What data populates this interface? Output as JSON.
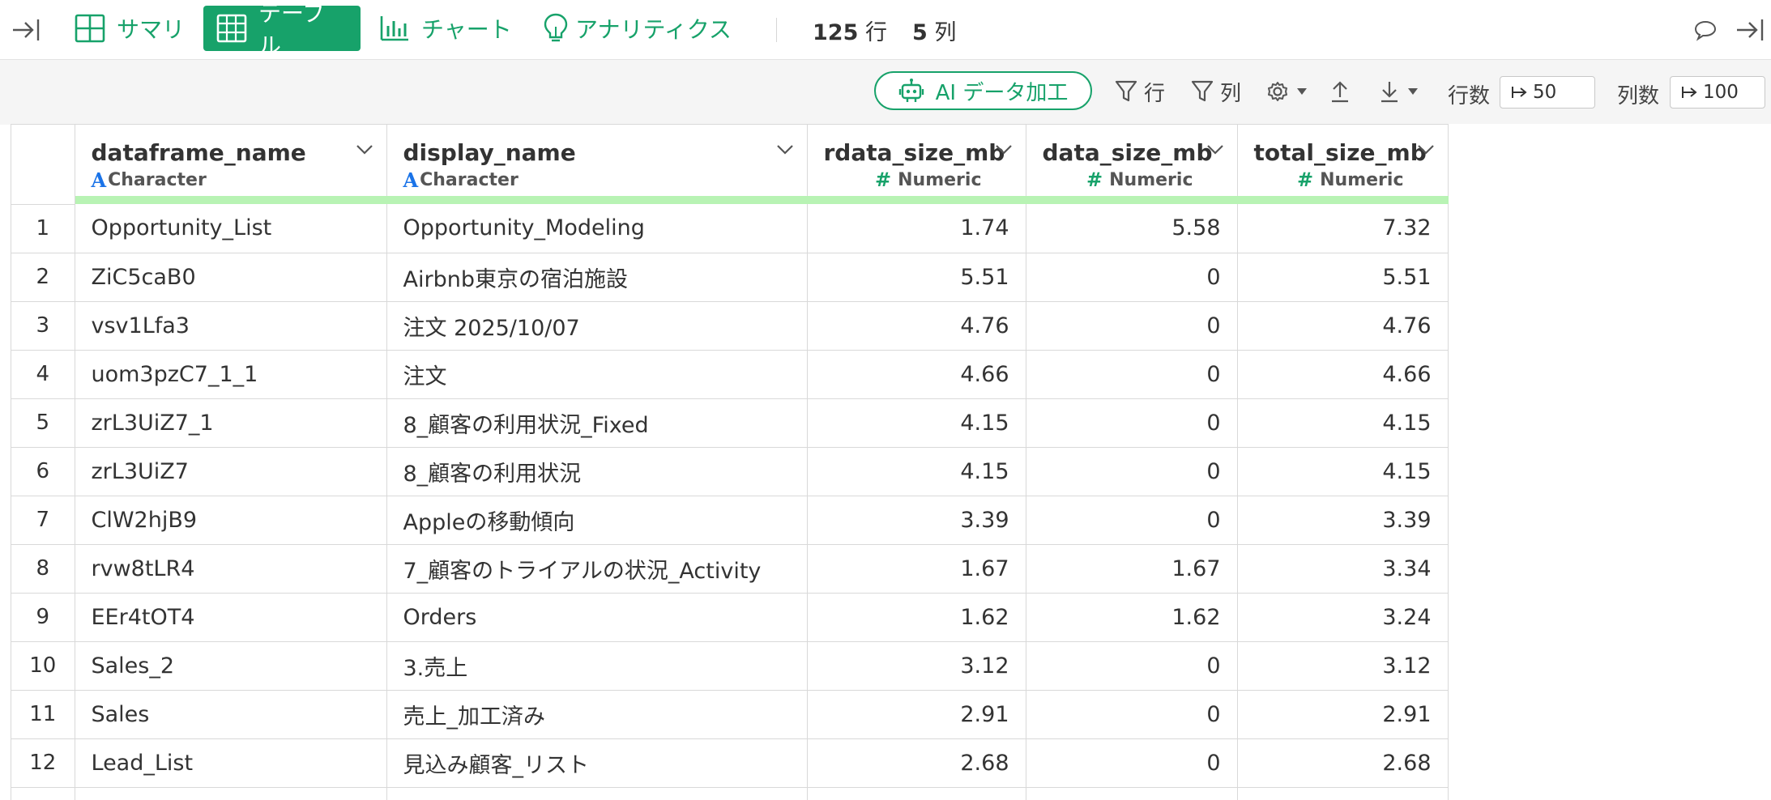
{
  "topbar": {
    "tabs": [
      {
        "label": "サマリ",
        "icon": "summary-grid-icon",
        "active": false
      },
      {
        "label": "テーブル",
        "icon": "table-icon",
        "active": true
      },
      {
        "label": "チャート",
        "icon": "bar-chart-icon",
        "active": false
      },
      {
        "label": "アナリティクス",
        "icon": "lightbulb-icon",
        "active": false
      }
    ],
    "row_count": "125",
    "row_unit": "行",
    "col_count": "5",
    "col_unit": "列"
  },
  "toolbar": {
    "ai_label": "AI データ加工",
    "filter_rows_label": "行",
    "filter_cols_label": "列",
    "rows_label": "行数",
    "rows_value": "50",
    "cols_label": "列数",
    "cols_value": "100"
  },
  "table": {
    "columns": [
      {
        "name": "dataframe_name",
        "type": "Character",
        "kind": "text"
      },
      {
        "name": "display_name",
        "type": "Character",
        "kind": "text"
      },
      {
        "name": "rdata_size_mb",
        "type": "Numeric",
        "kind": "num"
      },
      {
        "name": "data_size_mb",
        "type": "Numeric",
        "kind": "num"
      },
      {
        "name": "total_size_mb",
        "type": "Numeric",
        "kind": "num"
      }
    ],
    "rows": [
      [
        "1",
        "Opportunity_List",
        "Opportunity_Modeling",
        "1.74",
        "5.58",
        "7.32"
      ],
      [
        "2",
        "ZiC5caB0",
        "Airbnb東京の宿泊施設",
        "5.51",
        "0",
        "5.51"
      ],
      [
        "3",
        "vsv1Lfa3",
        "注文 2025/10/07",
        "4.76",
        "0",
        "4.76"
      ],
      [
        "4",
        "uom3pzC7_1_1",
        "注文",
        "4.66",
        "0",
        "4.66"
      ],
      [
        "5",
        "zrL3UiZ7_1",
        "8_顧客の利用状況_Fixed",
        "4.15",
        "0",
        "4.15"
      ],
      [
        "6",
        "zrL3UiZ7",
        "8_顧客の利用状況",
        "4.15",
        "0",
        "4.15"
      ],
      [
        "7",
        "ClW2hjB9",
        "Appleの移動傾向",
        "3.39",
        "0",
        "3.39"
      ],
      [
        "8",
        "rvw8tLR4",
        "7_顧客のトライアルの状況_Activity",
        "1.67",
        "1.67",
        "3.34"
      ],
      [
        "9",
        "EEr4tOT4",
        "Orders",
        "1.62",
        "1.62",
        "3.24"
      ],
      [
        "10",
        "Sales_2",
        "3.売上",
        "3.12",
        "0",
        "3.12"
      ],
      [
        "11",
        "Sales",
        "売上_加工済み",
        "2.91",
        "0",
        "2.91"
      ],
      [
        "12",
        "Lead_List",
        "見込み顧客_リスト",
        "2.68",
        "0",
        "2.68"
      ],
      [
        "",
        "",
        "",
        "",
        "",
        ""
      ]
    ]
  },
  "colors": {
    "accent": "#17a26a",
    "numeric_icon": "#17a26a",
    "character_icon": "#1a73e8",
    "header_bar": "#b8f3b4",
    "toolbar_bg": "#f5f5f5"
  }
}
